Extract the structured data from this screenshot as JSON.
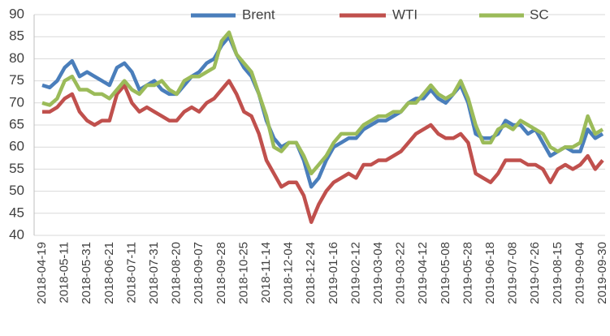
{
  "chart_data": {
    "type": "line",
    "x": [
      "2018-04-19",
      null,
      null,
      "2018-05-11",
      null,
      null,
      "2018-05-31",
      null,
      null,
      "2018-06-21",
      null,
      null,
      "2018-07-11",
      null,
      null,
      "2018-07-31",
      null,
      null,
      "2018-08-20",
      null,
      null,
      "2018-09-07",
      null,
      null,
      "2018-09-28",
      null,
      null,
      "2018-10-25",
      null,
      null,
      "2018-11-14",
      null,
      null,
      "2018-12-04",
      null,
      null,
      "2018-12-24",
      null,
      null,
      "2019-01-16",
      null,
      null,
      "2019-02-12",
      null,
      null,
      "2019-03-04",
      null,
      null,
      "2019-03-22",
      null,
      null,
      "2019-04-12",
      null,
      null,
      "2019-05-08",
      null,
      null,
      "2019-05-28",
      null,
      null,
      "2019-06-18",
      null,
      null,
      "2019-07-08",
      null,
      null,
      "2019-07-26",
      null,
      null,
      "2019-08-15",
      null,
      null,
      "2019-09-04",
      null,
      null,
      "2019-09-30"
    ],
    "series": [
      {
        "name": "Brent",
        "color": "#4a7ebb",
        "values": [
          74,
          73.5,
          75,
          78,
          79.5,
          76,
          77,
          76,
          75,
          74,
          78,
          79,
          77,
          73,
          74,
          75,
          73,
          72,
          72,
          74,
          76,
          77,
          79,
          80,
          83,
          85,
          81,
          78,
          76,
          72,
          66,
          62,
          60,
          61,
          61,
          57,
          51,
          53,
          57,
          60,
          61,
          62,
          62,
          64,
          65,
          66,
          66,
          67,
          68,
          70,
          71,
          71,
          73,
          71,
          70,
          72,
          74,
          70,
          63,
          62,
          62,
          63,
          66,
          65,
          65,
          63,
          64,
          61,
          58,
          59,
          60,
          59,
          59,
          64,
          62,
          63
        ]
      },
      {
        "name": "WTI",
        "color": "#c0504d",
        "values": [
          68,
          68,
          69,
          71,
          72,
          68,
          66,
          65,
          66,
          66,
          72,
          74,
          70,
          68,
          69,
          68,
          67,
          66,
          66,
          68,
          69,
          68,
          70,
          71,
          73,
          75,
          72,
          68,
          67,
          63,
          57,
          54,
          51,
          52,
          52,
          49,
          43,
          47,
          50,
          52,
          53,
          54,
          53,
          56,
          56,
          57,
          57,
          58,
          59,
          61,
          63,
          64,
          65,
          63,
          62,
          62,
          63,
          61,
          54,
          53,
          52,
          54,
          57,
          57,
          57,
          56,
          56,
          55,
          52,
          55,
          56,
          55,
          56,
          58,
          55,
          57
        ]
      },
      {
        "name": "SC",
        "color": "#9bbb59",
        "values": [
          70,
          69.5,
          71,
          75,
          76,
          73,
          73,
          72,
          72,
          71,
          73,
          75,
          73,
          72,
          74,
          74,
          75,
          73,
          72,
          75,
          76,
          76,
          77,
          78,
          84,
          86,
          81,
          79,
          77,
          72,
          67,
          60,
          59,
          61,
          61,
          58,
          54,
          56,
          58,
          61,
          63,
          63,
          63,
          65,
          66,
          67,
          67,
          68,
          68,
          70,
          70,
          72,
          74,
          72,
          71,
          72,
          75,
          71,
          65,
          61,
          61,
          64,
          65,
          64,
          66,
          65,
          64,
          63,
          60,
          59,
          60,
          60,
          61,
          67,
          63,
          64
        ]
      }
    ],
    "ylim": [
      40,
      90
    ],
    "yticks": [
      40,
      45,
      50,
      55,
      60,
      65,
      70,
      75,
      80,
      85,
      90
    ],
    "grid": true,
    "legend": "top"
  }
}
